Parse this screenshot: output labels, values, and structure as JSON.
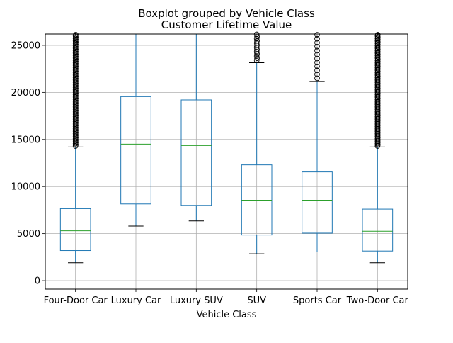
{
  "chart_data": {
    "type": "boxplot",
    "suptitle": "Boxplot grouped by Vehicle Class",
    "title": "Customer Lifetime Value",
    "xlabel": "Vehicle Class",
    "ylabel": "",
    "ylim": [
      -900,
      26200
    ],
    "yticks": [
      0,
      5000,
      10000,
      15000,
      20000,
      25000
    ],
    "grid": true,
    "categories": [
      "Four-Door Car",
      "Luxury Car",
      "Luxury SUV",
      "SUV",
      "Sports Car",
      "Two-Door Car"
    ],
    "boxes": [
      {
        "whisker_low": 1900,
        "q1": 3200,
        "median": 5300,
        "q3": 7650,
        "whisker_high": 14200,
        "outliers_from": 14300,
        "outliers_to": 26200,
        "outlier_density": "dense"
      },
      {
        "whisker_low": 5800,
        "q1": 8150,
        "median": 14500,
        "q3": 19550,
        "whisker_high": 26200,
        "outliers_from": null,
        "outliers_to": null,
        "outlier_density": "none"
      },
      {
        "whisker_low": 6350,
        "q1": 8000,
        "median": 14350,
        "q3": 19200,
        "whisker_high": 26200,
        "outliers_from": null,
        "outliers_to": null,
        "outlier_density": "none"
      },
      {
        "whisker_low": 2850,
        "q1": 4850,
        "median": 8550,
        "q3": 12300,
        "whisker_high": 23150,
        "outliers_from": 23400,
        "outliers_to": 26200,
        "outlier_density": "medium"
      },
      {
        "whisker_low": 3050,
        "q1": 5050,
        "median": 8550,
        "q3": 11550,
        "whisker_high": 21150,
        "outliers_from": 21500,
        "outliers_to": 26200,
        "outlier_density": "sparse"
      },
      {
        "whisker_low": 1900,
        "q1": 3150,
        "median": 5250,
        "q3": 7600,
        "whisker_high": 14200,
        "outliers_from": 14300,
        "outliers_to": 26200,
        "outlier_density": "dense"
      }
    ],
    "colors": {
      "box": "#1f77b4",
      "median": "#2ca02c",
      "whisker_cap": "#000000",
      "grid": "#b0b0b0",
      "outlier": "#000000"
    }
  }
}
